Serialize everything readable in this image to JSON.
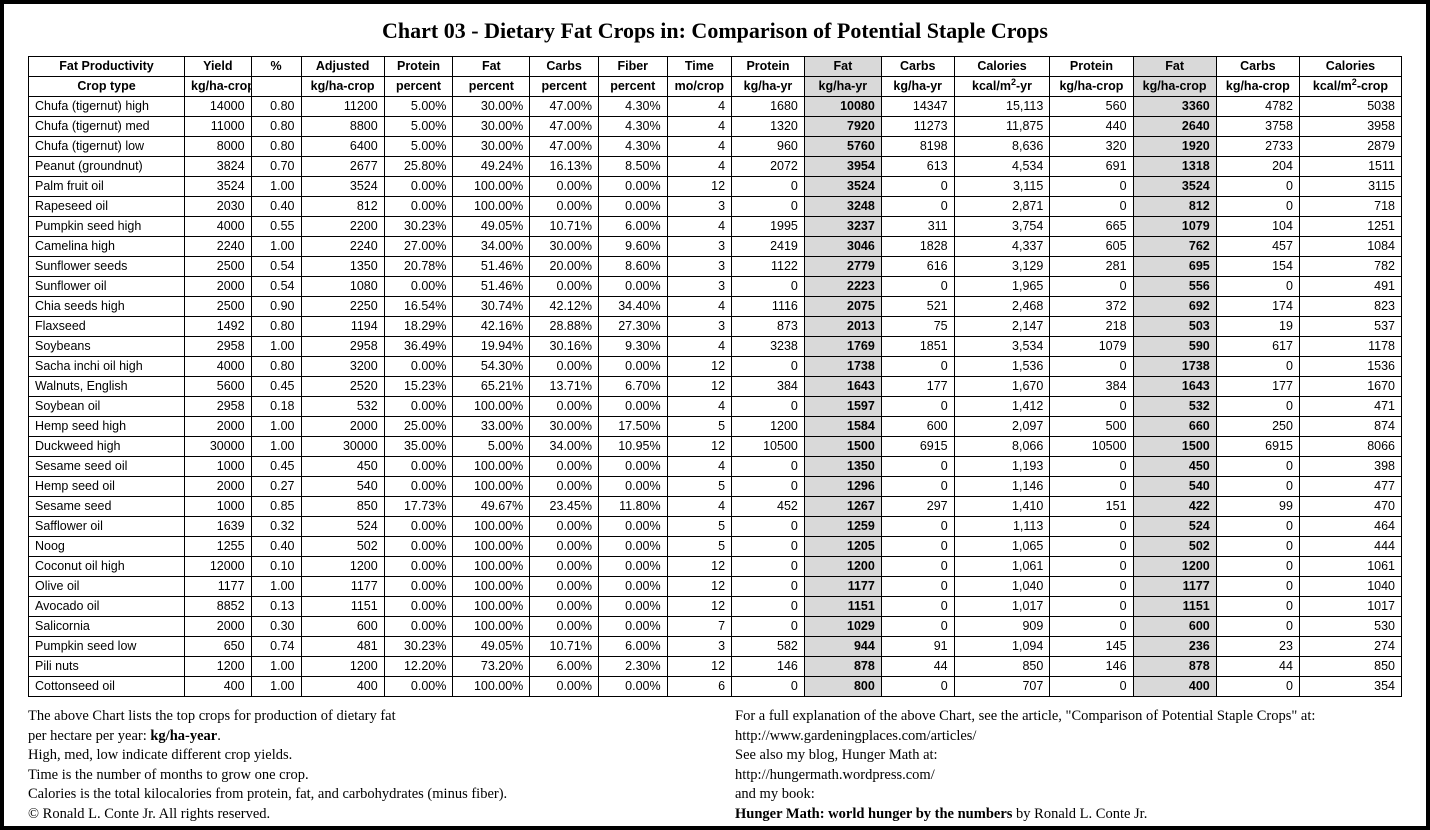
{
  "title": "Chart 03 - Dietary Fat Crops in: Comparison of Potential Staple Crops",
  "colors": {
    "highlight_bg": "#d9d9d9",
    "border": "#000000",
    "background": "#ffffff"
  },
  "table": {
    "highlight_cols": [
      10,
      14
    ],
    "header1": [
      "Fat Productivity",
      "Yield",
      "%",
      "Adjusted",
      "Protein",
      "Fat",
      "Carbs",
      "Fiber",
      "Time",
      "Protein",
      "Fat",
      "Carbs",
      "Calories",
      "Protein",
      "Fat",
      "Carbs",
      "Calories"
    ],
    "header2": [
      "Crop type",
      "kg/ha-crop",
      "",
      "kg/ha-crop",
      "percent",
      "percent",
      "percent",
      "percent",
      "mo/crop",
      "kg/ha-yr",
      "kg/ha-yr",
      "kg/ha-yr",
      "kcal/m²-yr",
      "kg/ha-crop",
      "kg/ha-crop",
      "kg/ha-crop",
      "kcal/m²-crop"
    ],
    "rows": [
      [
        "Chufa (tigernut) high",
        "14000",
        "0.80",
        "11200",
        "5.00%",
        "30.00%",
        "47.00%",
        "4.30%",
        "4",
        "1680",
        "10080",
        "14347",
        "15,113",
        "560",
        "3360",
        "4782",
        "5038"
      ],
      [
        "Chufa (tigernut) med",
        "11000",
        "0.80",
        "8800",
        "5.00%",
        "30.00%",
        "47.00%",
        "4.30%",
        "4",
        "1320",
        "7920",
        "11273",
        "11,875",
        "440",
        "2640",
        "3758",
        "3958"
      ],
      [
        "Chufa (tigernut) low",
        "8000",
        "0.80",
        "6400",
        "5.00%",
        "30.00%",
        "47.00%",
        "4.30%",
        "4",
        "960",
        "5760",
        "8198",
        "8,636",
        "320",
        "1920",
        "2733",
        "2879"
      ],
      [
        "Peanut (groundnut)",
        "3824",
        "0.70",
        "2677",
        "25.80%",
        "49.24%",
        "16.13%",
        "8.50%",
        "4",
        "2072",
        "3954",
        "613",
        "4,534",
        "691",
        "1318",
        "204",
        "1511"
      ],
      [
        "Palm fruit oil",
        "3524",
        "1.00",
        "3524",
        "0.00%",
        "100.00%",
        "0.00%",
        "0.00%",
        "12",
        "0",
        "3524",
        "0",
        "3,115",
        "0",
        "3524",
        "0",
        "3115"
      ],
      [
        "Rapeseed oil",
        "2030",
        "0.40",
        "812",
        "0.00%",
        "100.00%",
        "0.00%",
        "0.00%",
        "3",
        "0",
        "3248",
        "0",
        "2,871",
        "0",
        "812",
        "0",
        "718"
      ],
      [
        "Pumpkin seed high",
        "4000",
        "0.55",
        "2200",
        "30.23%",
        "49.05%",
        "10.71%",
        "6.00%",
        "4",
        "1995",
        "3237",
        "311",
        "3,754",
        "665",
        "1079",
        "104",
        "1251"
      ],
      [
        "Camelina high",
        "2240",
        "1.00",
        "2240",
        "27.00%",
        "34.00%",
        "30.00%",
        "9.60%",
        "3",
        "2419",
        "3046",
        "1828",
        "4,337",
        "605",
        "762",
        "457",
        "1084"
      ],
      [
        "Sunflower seeds",
        "2500",
        "0.54",
        "1350",
        "20.78%",
        "51.46%",
        "20.00%",
        "8.60%",
        "3",
        "1122",
        "2779",
        "616",
        "3,129",
        "281",
        "695",
        "154",
        "782"
      ],
      [
        "Sunflower oil",
        "2000",
        "0.54",
        "1080",
        "0.00%",
        "51.46%",
        "0.00%",
        "0.00%",
        "3",
        "0",
        "2223",
        "0",
        "1,965",
        "0",
        "556",
        "0",
        "491"
      ],
      [
        "Chia seeds high",
        "2500",
        "0.90",
        "2250",
        "16.54%",
        "30.74%",
        "42.12%",
        "34.40%",
        "4",
        "1116",
        "2075",
        "521",
        "2,468",
        "372",
        "692",
        "174",
        "823"
      ],
      [
        "Flaxseed",
        "1492",
        "0.80",
        "1194",
        "18.29%",
        "42.16%",
        "28.88%",
        "27.30%",
        "3",
        "873",
        "2013",
        "75",
        "2,147",
        "218",
        "503",
        "19",
        "537"
      ],
      [
        "Soybeans",
        "2958",
        "1.00",
        "2958",
        "36.49%",
        "19.94%",
        "30.16%",
        "9.30%",
        "4",
        "3238",
        "1769",
        "1851",
        "3,534",
        "1079",
        "590",
        "617",
        "1178"
      ],
      [
        "Sacha inchi oil high",
        "4000",
        "0.80",
        "3200",
        "0.00%",
        "54.30%",
        "0.00%",
        "0.00%",
        "12",
        "0",
        "1738",
        "0",
        "1,536",
        "0",
        "1738",
        "0",
        "1536"
      ],
      [
        "Walnuts, English",
        "5600",
        "0.45",
        "2520",
        "15.23%",
        "65.21%",
        "13.71%",
        "6.70%",
        "12",
        "384",
        "1643",
        "177",
        "1,670",
        "384",
        "1643",
        "177",
        "1670"
      ],
      [
        "Soybean oil",
        "2958",
        "0.18",
        "532",
        "0.00%",
        "100.00%",
        "0.00%",
        "0.00%",
        "4",
        "0",
        "1597",
        "0",
        "1,412",
        "0",
        "532",
        "0",
        "471"
      ],
      [
        "Hemp seed high",
        "2000",
        "1.00",
        "2000",
        "25.00%",
        "33.00%",
        "30.00%",
        "17.50%",
        "5",
        "1200",
        "1584",
        "600",
        "2,097",
        "500",
        "660",
        "250",
        "874"
      ],
      [
        "Duckweed high",
        "30000",
        "1.00",
        "30000",
        "35.00%",
        "5.00%",
        "34.00%",
        "10.95%",
        "12",
        "10500",
        "1500",
        "6915",
        "8,066",
        "10500",
        "1500",
        "6915",
        "8066"
      ],
      [
        "Sesame seed oil",
        "1000",
        "0.45",
        "450",
        "0.00%",
        "100.00%",
        "0.00%",
        "0.00%",
        "4",
        "0",
        "1350",
        "0",
        "1,193",
        "0",
        "450",
        "0",
        "398"
      ],
      [
        "Hemp seed oil",
        "2000",
        "0.27",
        "540",
        "0.00%",
        "100.00%",
        "0.00%",
        "0.00%",
        "5",
        "0",
        "1296",
        "0",
        "1,146",
        "0",
        "540",
        "0",
        "477"
      ],
      [
        "Sesame seed",
        "1000",
        "0.85",
        "850",
        "17.73%",
        "49.67%",
        "23.45%",
        "11.80%",
        "4",
        "452",
        "1267",
        "297",
        "1,410",
        "151",
        "422",
        "99",
        "470"
      ],
      [
        "Safflower oil",
        "1639",
        "0.32",
        "524",
        "0.00%",
        "100.00%",
        "0.00%",
        "0.00%",
        "5",
        "0",
        "1259",
        "0",
        "1,113",
        "0",
        "524",
        "0",
        "464"
      ],
      [
        "Noog",
        "1255",
        "0.40",
        "502",
        "0.00%",
        "100.00%",
        "0.00%",
        "0.00%",
        "5",
        "0",
        "1205",
        "0",
        "1,065",
        "0",
        "502",
        "0",
        "444"
      ],
      [
        "Coconut oil high",
        "12000",
        "0.10",
        "1200",
        "0.00%",
        "100.00%",
        "0.00%",
        "0.00%",
        "12",
        "0",
        "1200",
        "0",
        "1,061",
        "0",
        "1200",
        "0",
        "1061"
      ],
      [
        "Olive oil",
        "1177",
        "1.00",
        "1177",
        "0.00%",
        "100.00%",
        "0.00%",
        "0.00%",
        "12",
        "0",
        "1177",
        "0",
        "1,040",
        "0",
        "1177",
        "0",
        "1040"
      ],
      [
        "Avocado oil",
        "8852",
        "0.13",
        "1151",
        "0.00%",
        "100.00%",
        "0.00%",
        "0.00%",
        "12",
        "0",
        "1151",
        "0",
        "1,017",
        "0",
        "1151",
        "0",
        "1017"
      ],
      [
        "Salicornia",
        "2000",
        "0.30",
        "600",
        "0.00%",
        "100.00%",
        "0.00%",
        "0.00%",
        "7",
        "0",
        "1029",
        "0",
        "909",
        "0",
        "600",
        "0",
        "530"
      ],
      [
        "Pumpkin seed low",
        "650",
        "0.74",
        "481",
        "30.23%",
        "49.05%",
        "10.71%",
        "6.00%",
        "3",
        "582",
        "944",
        "91",
        "1,094",
        "145",
        "236",
        "23",
        "274"
      ],
      [
        "Pili nuts",
        "1200",
        "1.00",
        "1200",
        "12.20%",
        "73.20%",
        "6.00%",
        "2.30%",
        "12",
        "146",
        "878",
        "44",
        "850",
        "146",
        "878",
        "44",
        "850"
      ],
      [
        "Cottonseed oil",
        "400",
        "1.00",
        "400",
        "0.00%",
        "100.00%",
        "0.00%",
        "0.00%",
        "6",
        "0",
        "800",
        "0",
        "707",
        "0",
        "400",
        "0",
        "354"
      ]
    ]
  },
  "footer": {
    "left": [
      [
        "The above Chart lists the top crops for production of dietary fat",
        ""
      ],
      [
        "per hectare per year: ",
        "kg/ha-year",
        "."
      ],
      [
        "High, med, low indicate different crop yields.",
        ""
      ],
      [
        "Time is the number of months to grow one crop.",
        ""
      ],
      [
        "Calories is the total kilocalories from protein, fat, and carbohydrates (minus fiber).",
        ""
      ],
      [
        "© Ronald L. Conte Jr. All rights reserved.",
        ""
      ]
    ],
    "right": [
      [
        "For a full explanation of the above Chart, see the article, \"Comparison of Potential Staple Crops\" at:",
        ""
      ],
      [
        "http://www.gardeningplaces.com/articles/",
        ""
      ],
      [
        "See also my blog, Hunger Math at:",
        ""
      ],
      [
        "http://hungermath.wordpress.com/",
        ""
      ],
      [
        "and my book:",
        ""
      ],
      [
        "",
        "Hunger Math: world hunger by the numbers",
        " by Ronald L. Conte Jr."
      ]
    ]
  }
}
